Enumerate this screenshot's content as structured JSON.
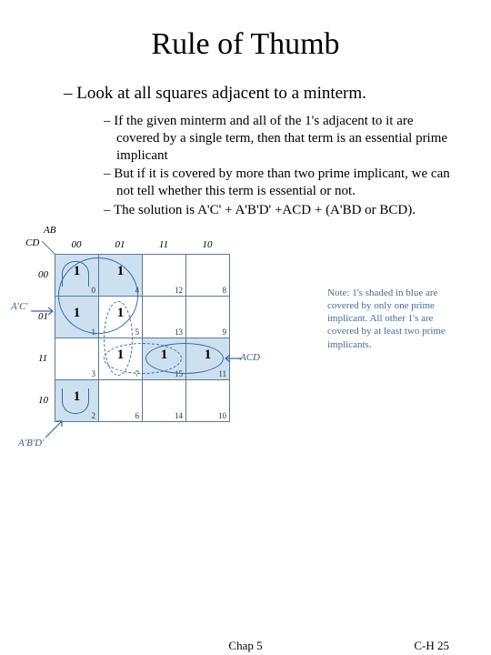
{
  "title": "Rule of Thumb",
  "main_bullet": "Look at all squares adjacent to a minterm.",
  "sub_bullets": [
    "If the given minterm and all of the 1's adjacent to it are covered by a single term, then that term is an essential prime implicant",
    "But if it is covered by more than two prime implicant, we can not tell whether this term is essential or not.",
    "The solution is A'C' + A'B'D' +ACD + (A'BD or BCD)."
  ],
  "kmap": {
    "axis_ab": "AB",
    "axis_cd": "CD",
    "col_labels": [
      "00",
      "01",
      "11",
      "10"
    ],
    "row_labels": [
      "00",
      "01",
      "11",
      "10"
    ],
    "cells": [
      [
        {
          "v": "1",
          "i": "0",
          "s": true
        },
        {
          "v": "1",
          "i": "4",
          "s": true
        },
        {
          "v": "",
          "i": "12",
          "s": false
        },
        {
          "v": "",
          "i": "8",
          "s": false
        }
      ],
      [
        {
          "v": "1",
          "i": "1",
          "s": true
        },
        {
          "v": "1",
          "i": "5",
          "s": false
        },
        {
          "v": "",
          "i": "13",
          "s": false
        },
        {
          "v": "",
          "i": "9",
          "s": false
        }
      ],
      [
        {
          "v": "",
          "i": "3",
          "s": false
        },
        {
          "v": "1",
          "i": "7",
          "s": false
        },
        {
          "v": "1",
          "i": "15",
          "s": true
        },
        {
          "v": "1",
          "i": "11",
          "s": true
        }
      ],
      [
        {
          "v": "1",
          "i": "2",
          "s": true
        },
        {
          "v": "",
          "i": "6",
          "s": false
        },
        {
          "v": "",
          "i": "14",
          "s": false
        },
        {
          "v": "",
          "i": "10",
          "s": false
        }
      ]
    ],
    "implicants": {
      "ac_prime": "A'C'",
      "ab_d_prime": "A'B'D'",
      "acd": "ACD"
    },
    "note": "Note: 1's shaded in blue are covered by only one prime implicant. All other 1's are covered by at least two prime implicants."
  },
  "footer": {
    "center": "Chap 5",
    "right": "C-H  25"
  },
  "colors": {
    "shade": "#cde0f0",
    "line": "#3a6aa8"
  }
}
